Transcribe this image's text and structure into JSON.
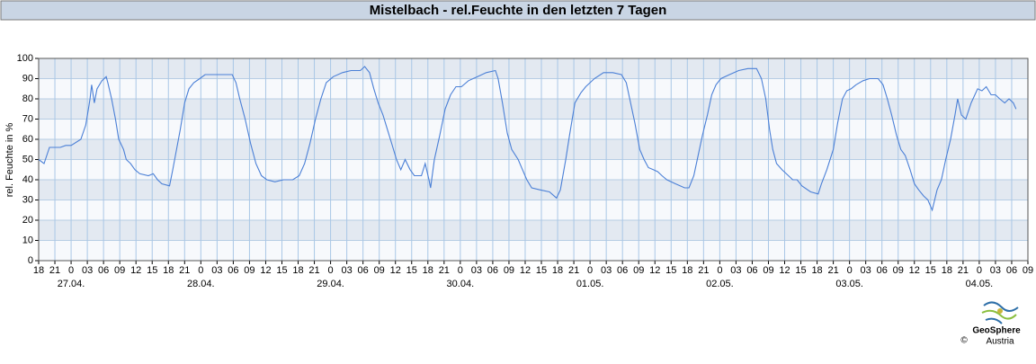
{
  "chart_data": {
    "type": "line",
    "title": "Mistelbach - rel.Feuchte in den letzten 7 Tagen",
    "ylabel": "rel. Feuchte in %",
    "logo": {
      "name": "GeoSphere",
      "sub": "Austria",
      "copyright": "©"
    },
    "xlim": [
      0,
      183
    ],
    "ylim": [
      0,
      100
    ],
    "yticks": [
      0,
      10,
      20,
      30,
      40,
      50,
      60,
      70,
      80,
      90,
      100
    ],
    "grid": true,
    "xticks": [
      {
        "value": 0,
        "label": "18"
      },
      {
        "value": 3,
        "label": "21"
      },
      {
        "value": 6,
        "label": "0"
      },
      {
        "value": 9,
        "label": "03"
      },
      {
        "value": 12,
        "label": "06"
      },
      {
        "value": 15,
        "label": "09"
      },
      {
        "value": 18,
        "label": "12"
      },
      {
        "value": 21,
        "label": "15"
      },
      {
        "value": 24,
        "label": "18"
      },
      {
        "value": 27,
        "label": "21"
      },
      {
        "value": 30,
        "label": "0"
      },
      {
        "value": 33,
        "label": "03"
      },
      {
        "value": 36,
        "label": "06"
      },
      {
        "value": 39,
        "label": "09"
      },
      {
        "value": 42,
        "label": "12"
      },
      {
        "value": 45,
        "label": "15"
      },
      {
        "value": 48,
        "label": "18"
      },
      {
        "value": 51,
        "label": "21"
      },
      {
        "value": 54,
        "label": "0"
      },
      {
        "value": 57,
        "label": "03"
      },
      {
        "value": 60,
        "label": "06"
      },
      {
        "value": 63,
        "label": "09"
      },
      {
        "value": 66,
        "label": "12"
      },
      {
        "value": 69,
        "label": "15"
      },
      {
        "value": 72,
        "label": "18"
      },
      {
        "value": 75,
        "label": "21"
      },
      {
        "value": 78,
        "label": "0"
      },
      {
        "value": 81,
        "label": "03"
      },
      {
        "value": 84,
        "label": "06"
      },
      {
        "value": 87,
        "label": "09"
      },
      {
        "value": 90,
        "label": "12"
      },
      {
        "value": 93,
        "label": "15"
      },
      {
        "value": 96,
        "label": "18"
      },
      {
        "value": 99,
        "label": "21"
      },
      {
        "value": 102,
        "label": "0"
      },
      {
        "value": 105,
        "label": "03"
      },
      {
        "value": 108,
        "label": "06"
      },
      {
        "value": 111,
        "label": "09"
      },
      {
        "value": 114,
        "label": "12"
      },
      {
        "value": 117,
        "label": "15"
      },
      {
        "value": 120,
        "label": "18"
      },
      {
        "value": 123,
        "label": "21"
      },
      {
        "value": 126,
        "label": "0"
      },
      {
        "value": 129,
        "label": "03"
      },
      {
        "value": 132,
        "label": "06"
      },
      {
        "value": 135,
        "label": "09"
      },
      {
        "value": 138,
        "label": "12"
      },
      {
        "value": 141,
        "label": "15"
      },
      {
        "value": 144,
        "label": "18"
      },
      {
        "value": 147,
        "label": "21"
      },
      {
        "value": 150,
        "label": "0"
      },
      {
        "value": 153,
        "label": "03"
      },
      {
        "value": 156,
        "label": "06"
      },
      {
        "value": 159,
        "label": "09"
      },
      {
        "value": 162,
        "label": "12"
      },
      {
        "value": 165,
        "label": "15"
      },
      {
        "value": 168,
        "label": "18"
      },
      {
        "value": 171,
        "label": "21"
      },
      {
        "value": 174,
        "label": "0"
      },
      {
        "value": 177,
        "label": "03"
      },
      {
        "value": 180,
        "label": "06"
      },
      {
        "value": 183,
        "label": "09"
      }
    ],
    "day_labels": [
      {
        "value": 6,
        "label": "27.04."
      },
      {
        "value": 30,
        "label": "28.04."
      },
      {
        "value": 54,
        "label": "29.04."
      },
      {
        "value": 78,
        "label": "30.04."
      },
      {
        "value": 102,
        "label": "01.05."
      },
      {
        "value": 126,
        "label": "02.05."
      },
      {
        "value": 150,
        "label": "03.05."
      },
      {
        "value": 174,
        "label": "04.05."
      }
    ],
    "x": [
      0,
      1,
      2,
      3,
      4,
      5,
      6,
      7.8,
      8.7,
      9.2,
      9.5,
      9.8,
      10.3,
      10.8,
      11.7,
      12.5,
      12.8,
      13.5,
      14.2,
      14.8,
      15.7,
      16.2,
      17,
      17.8,
      18.7,
      20.3,
      21.2,
      22,
      22.8,
      24.2,
      24.8,
      25.5,
      26.2,
      27,
      27.8,
      28.7,
      29.8,
      30.8,
      34.5,
      35.8,
      36.5,
      37.2,
      38.2,
      39.2,
      40.2,
      41.2,
      42.2,
      43.7,
      45.3,
      47,
      48.2,
      49.2,
      50.2,
      51.2,
      52.2,
      53.2,
      54.5,
      56.2,
      57.8,
      59.5,
      60.3,
      61.2,
      62,
      62.8,
      63.7,
      64.5,
      65.3,
      66.2,
      67,
      67.8,
      68.7,
      69.5,
      70.8,
      71.5,
      72.2,
      72.5,
      73.2,
      74.2,
      75.2,
      76.2,
      77.2,
      78.2,
      79.5,
      81.2,
      82.8,
      84.5,
      85,
      85.8,
      86.7,
      87.5,
      88.7,
      89.5,
      90.3,
      91.2,
      92.8,
      94.5,
      95.8,
      96.5,
      97.5,
      98.2,
      99.2,
      100.3,
      101.2,
      102.8,
      104.5,
      106.2,
      107.8,
      108.7,
      109.5,
      110.3,
      111.2,
      112,
      112.8,
      113.7,
      114.5,
      115.3,
      116.2,
      117.8,
      119.5,
      120.3,
      121.2,
      122,
      122.8,
      123.7,
      124.5,
      125.3,
      126.2,
      127.8,
      129.5,
      131.2,
      132.8,
      133.7,
      134.5,
      135.2,
      135.8,
      136.5,
      137.5,
      138.7,
      139.5,
      140.3,
      141.2,
      142.8,
      144.2,
      144.8,
      145.8,
      147,
      147.8,
      148.7,
      149.5,
      150.3,
      151.2,
      152.5,
      153.7,
      155.3,
      156.2,
      157,
      157.8,
      158.7,
      159.5,
      160.3,
      161.2,
      162,
      162.8,
      163.7,
      164.5,
      165.3,
      166.2,
      167,
      167.8,
      168.7,
      169.5,
      170,
      170.7,
      171.5,
      172.5,
      173.7,
      174.5,
      175.3,
      176.2,
      177,
      177.8,
      178.7,
      179.5,
      180.3,
      180.8
    ],
    "series": [
      {
        "color": "#4a7fd6",
        "values": [
          50,
          48,
          56,
          56,
          56,
          57,
          57,
          60,
          67,
          75,
          80,
          87,
          78,
          85,
          89,
          91,
          88,
          80,
          70,
          60,
          55,
          50,
          48,
          45,
          43,
          42,
          43,
          40,
          38,
          37,
          45,
          55,
          65,
          78,
          85,
          88,
          90,
          92,
          92,
          92,
          88,
          80,
          70,
          58,
          48,
          42,
          40,
          39,
          40,
          40,
          42,
          48,
          58,
          70,
          80,
          88,
          91,
          93,
          94,
          94,
          96,
          93,
          85,
          78,
          72,
          65,
          58,
          50,
          45,
          50,
          45,
          42,
          42,
          48,
          40,
          36,
          50,
          62,
          75,
          82,
          86,
          86,
          89,
          91,
          93,
          94,
          90,
          78,
          63,
          55,
          50,
          45,
          40,
          36,
          35,
          34,
          31,
          35,
          50,
          62,
          78,
          83,
          86,
          90,
          93,
          93,
          92,
          88,
          78,
          68,
          55,
          50,
          46,
          45,
          44,
          42,
          40,
          38,
          36,
          36,
          42,
          52,
          62,
          72,
          82,
          87,
          90,
          92,
          94,
          95,
          95,
          90,
          80,
          65,
          55,
          48,
          45,
          42,
          40,
          40,
          37,
          34,
          33,
          38,
          45,
          55,
          68,
          80,
          84,
          85,
          87,
          89,
          90,
          90,
          87,
          80,
          72,
          62,
          55,
          52,
          45,
          38,
          35,
          32,
          30,
          25,
          35,
          40,
          50,
          60,
          72,
          80,
          72,
          70,
          78,
          85,
          84,
          86,
          82,
          82,
          80,
          78,
          80,
          78,
          75
        ]
      }
    ]
  }
}
